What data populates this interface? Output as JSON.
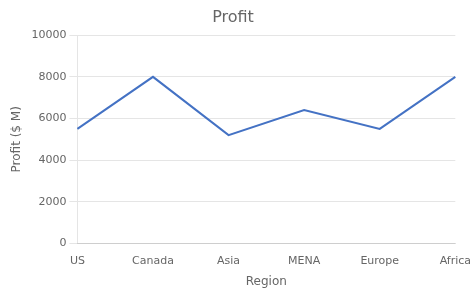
{
  "chart_data": {
    "type": "line",
    "title": "Profit",
    "xlabel": "Region",
    "ylabel": "Profit ($ M)",
    "categories": [
      "US",
      "Canada",
      "Asia",
      "MENA",
      "Europe",
      "Africa"
    ],
    "values": [
      5500,
      8000,
      5200,
      6400,
      5500,
      8000
    ],
    "color": "#4472C4",
    "ylim": [
      0,
      10000
    ],
    "yticks": [
      0,
      2000,
      4000,
      6000,
      8000,
      10000
    ],
    "grid": true
  }
}
